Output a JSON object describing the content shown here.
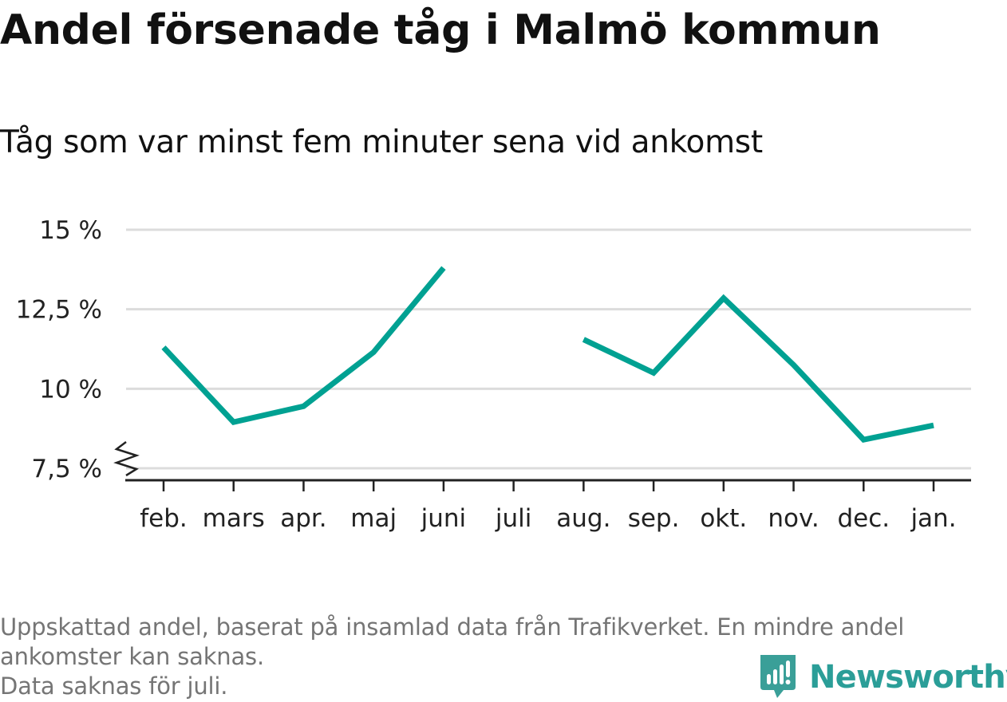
{
  "chart_data": {
    "type": "line",
    "title": "Andel försenade tåg i Malmö kommun",
    "subtitle": "Tåg som var minst fem minuter sena vid ankomst",
    "categories": [
      "feb.",
      "mars",
      "apr.",
      "maj",
      "juni",
      "juli",
      "aug.",
      "sep.",
      "okt.",
      "nov.",
      "dec.",
      "jan."
    ],
    "series": [
      {
        "values": [
          11.3,
          8.95,
          9.45,
          11.15,
          13.8,
          null,
          11.55,
          10.5,
          12.85,
          10.75,
          8.4,
          8.85
        ]
      }
    ],
    "ylim": [
      7.5,
      15
    ],
    "yticks": [
      7.5,
      10,
      12.5,
      15
    ],
    "ytick_labels": [
      "7,5 %",
      "10 %",
      "12,5 %",
      "15 %"
    ],
    "grid": true,
    "line_color": "#00a192"
  },
  "footnote": {
    "line1": "Uppskattad andel, baserat på insamlad data från Trafikverket. En mindre andel",
    "line2": "ankomster kan saknas.",
    "line3": "Data saknas för juli."
  },
  "brand": {
    "name": "Newsworthy",
    "icon": "newsworthy-logo-icon",
    "color": "#3a9f98"
  }
}
